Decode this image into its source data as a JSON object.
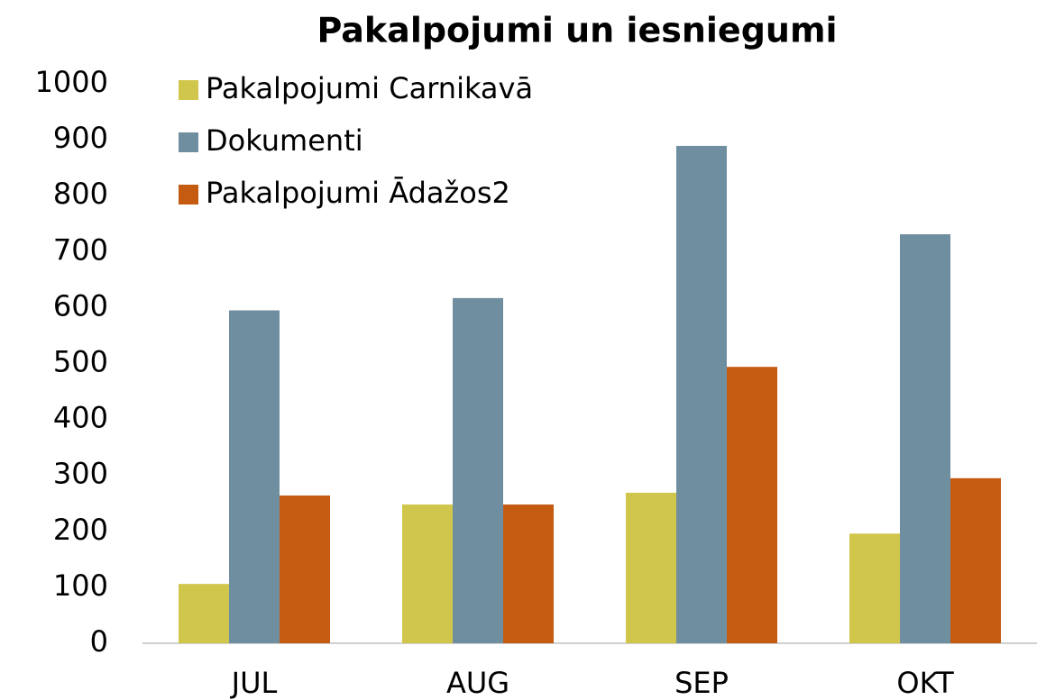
{
  "chart_data": {
    "type": "bar",
    "title": "Pakalpojumi un iesniegumi",
    "categories": [
      "JUL",
      "AUG",
      "SEP",
      "OKT"
    ],
    "series": [
      {
        "name": "Pakalpojumi Carnikavā",
        "color": "#d0c64b",
        "values": [
          106,
          248,
          269,
          196
        ]
      },
      {
        "name": "Dokumenti",
        "color": "#6f8fa1",
        "values": [
          595,
          617,
          889,
          731
        ]
      },
      {
        "name": "Pakalpojumi Ādažos2",
        "color": "#c55a11",
        "values": [
          264,
          248,
          494,
          295
        ]
      }
    ],
    "ylim": [
      0,
      1000
    ],
    "yticks": [
      0,
      100,
      200,
      300,
      400,
      500,
      600,
      700,
      800,
      900,
      1000
    ],
    "grid": false,
    "legend": "top-left"
  }
}
